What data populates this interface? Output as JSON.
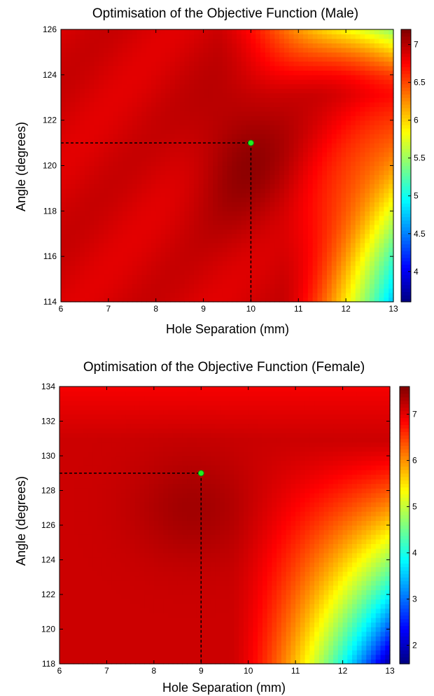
{
  "chart_data": [
    {
      "type": "heatmap",
      "title": "Optimisation of the Objective Function (Male)",
      "xlabel": "Hole Separation (mm)",
      "ylabel": "Angle (degrees)",
      "xlim": [
        6,
        13
      ],
      "ylim": [
        114,
        126
      ],
      "x_ticks": [
        6,
        7,
        8,
        9,
        10,
        11,
        12,
        13
      ],
      "y_ticks": [
        114,
        116,
        118,
        120,
        122,
        124,
        126
      ],
      "colorbar": {
        "min": 3.6,
        "max": 7.2,
        "ticks": [
          4,
          4.5,
          5,
          5.5,
          6,
          6.5,
          7
        ]
      },
      "optimum": {
        "x": 10,
        "y": 121,
        "color": "#22ee22"
      },
      "colormap": "jet",
      "colors": {
        "marker": "#22ee22",
        "guide": "#000000"
      }
    },
    {
      "type": "heatmap",
      "title": "Optimisation of the Objective Function (Female)",
      "xlabel": "Hole Separation (mm)",
      "ylabel": "Angle (degrees)",
      "xlim": [
        6,
        13
      ],
      "ylim": [
        118,
        134
      ],
      "x_ticks": [
        6,
        7,
        8,
        9,
        10,
        11,
        12,
        13
      ],
      "y_ticks": [
        118,
        120,
        122,
        124,
        126,
        128,
        130,
        132,
        134
      ],
      "colorbar": {
        "min": 1.6,
        "max": 7.6,
        "ticks": [
          2,
          3,
          4,
          5,
          6,
          7
        ]
      },
      "optimum": {
        "x": 9,
        "y": 129,
        "color": "#22ee22"
      },
      "colormap": "jet",
      "colors": {
        "marker": "#22ee22",
        "guide": "#000000"
      }
    }
  ]
}
